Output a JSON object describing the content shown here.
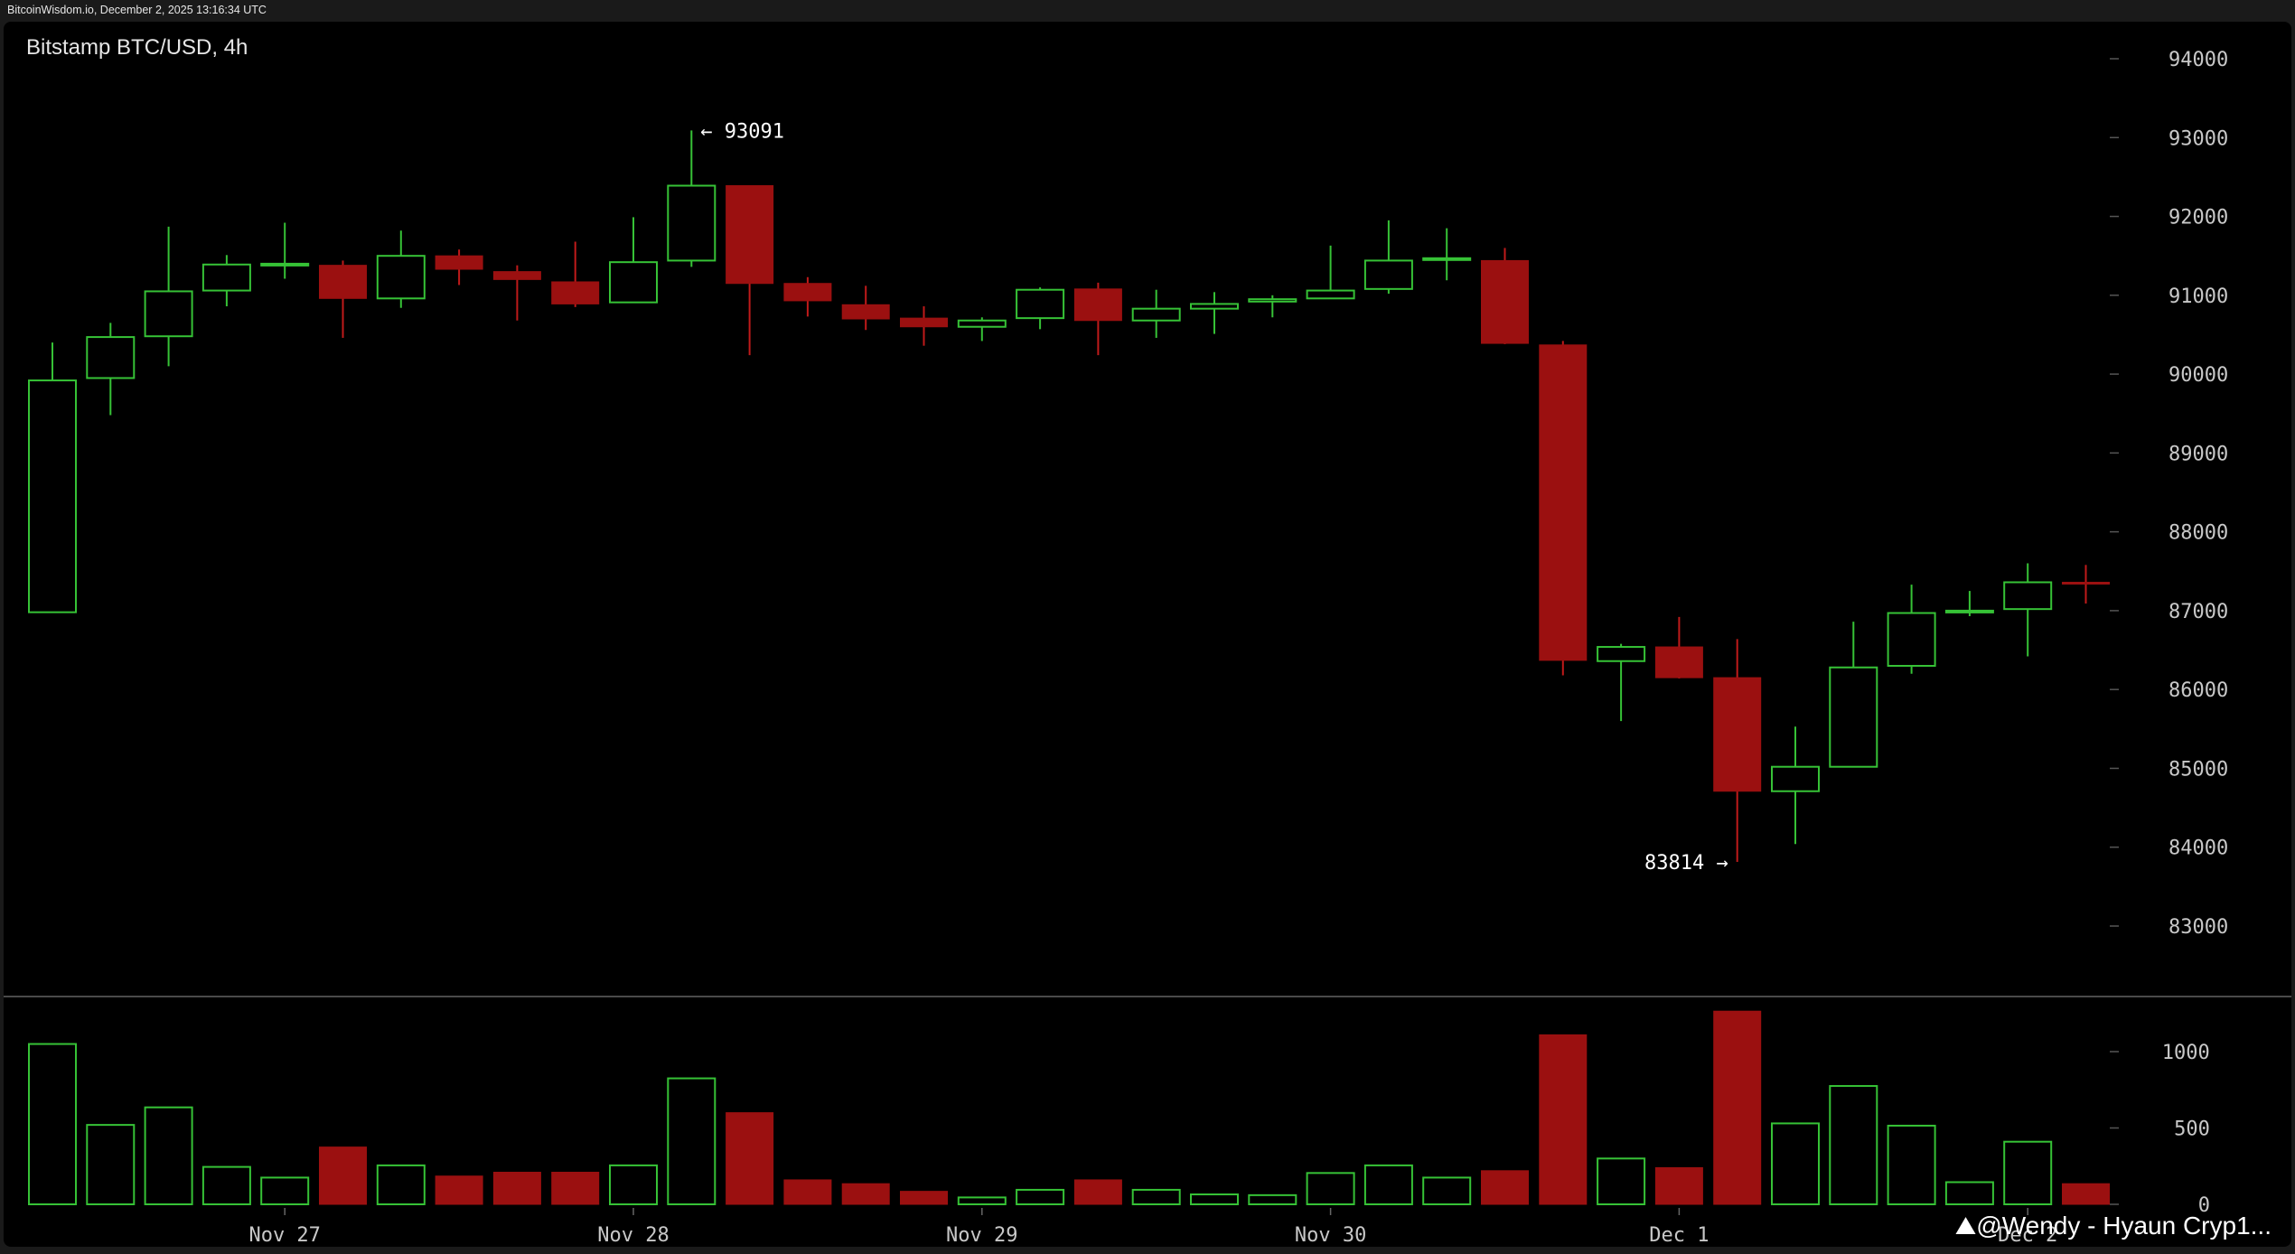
{
  "header": {
    "text": "BitcoinWisdom.io, December 2, 2025 13:16:34 UTC"
  },
  "watermark": {
    "text": "@Wendy - Hyaun Cryp1..."
  },
  "chart_data": {
    "type": "candlestick",
    "title": "Bitstamp BTC/USD, 4h",
    "price_axis": {
      "ticks": [
        83000,
        84000,
        85000,
        86000,
        87000,
        88000,
        89000,
        90000,
        91000,
        92000,
        93000,
        94000
      ]
    },
    "volume_axis": {
      "ticks": [
        0,
        500,
        1000
      ]
    },
    "x_labels": [
      {
        "label": "Nov 27",
        "index": 4
      },
      {
        "label": "Nov 28",
        "index": 10
      },
      {
        "label": "Nov 29",
        "index": 16
      },
      {
        "label": "Nov 30",
        "index": 22
      },
      {
        "label": "Dec 1",
        "index": 28
      },
      {
        "label": "Dec 2",
        "index": 34
      }
    ],
    "annotations": [
      {
        "text": "← 93091",
        "index": 11,
        "value": 93091,
        "side": "right"
      },
      {
        "text": "83814 →",
        "index": 29,
        "value": 83814,
        "side": "left"
      }
    ],
    "colors": {
      "up": "#36c236",
      "down": "#9b1010",
      "down_stroke": "#c01a1a"
    },
    "candles": [
      {
        "o": 86980,
        "h": 90400,
        "l": 86980,
        "c": 89920,
        "v": 1050
      },
      {
        "o": 89950,
        "h": 90650,
        "l": 89480,
        "c": 90470,
        "v": 520
      },
      {
        "o": 90480,
        "h": 91870,
        "l": 90100,
        "c": 91050,
        "v": 635
      },
      {
        "o": 91060,
        "h": 91510,
        "l": 90860,
        "c": 91390,
        "v": 245
      },
      {
        "o": 91400,
        "h": 91920,
        "l": 91210,
        "c": 91400,
        "v": 175
      },
      {
        "o": 91380,
        "h": 91440,
        "l": 90460,
        "c": 90960,
        "v": 375
      },
      {
        "o": 90960,
        "h": 91820,
        "l": 90840,
        "c": 91500,
        "v": 255
      },
      {
        "o": 91500,
        "h": 91580,
        "l": 91130,
        "c": 91330,
        "v": 185
      },
      {
        "o": 91300,
        "h": 91380,
        "l": 90680,
        "c": 91200,
        "v": 210
      },
      {
        "o": 91170,
        "h": 91680,
        "l": 90850,
        "c": 90890,
        "v": 210
      },
      {
        "o": 90910,
        "h": 91990,
        "l": 90910,
        "c": 91420,
        "v": 255
      },
      {
        "o": 91440,
        "h": 93091,
        "l": 91360,
        "c": 92390,
        "v": 825
      },
      {
        "o": 92390,
        "h": 92390,
        "l": 90240,
        "c": 91150,
        "v": 600
      },
      {
        "o": 91150,
        "h": 91230,
        "l": 90730,
        "c": 90930,
        "v": 160
      },
      {
        "o": 90880,
        "h": 91120,
        "l": 90560,
        "c": 90700,
        "v": 135
      },
      {
        "o": 90710,
        "h": 90860,
        "l": 90360,
        "c": 90600,
        "v": 85
      },
      {
        "o": 90600,
        "h": 90720,
        "l": 90420,
        "c": 90680,
        "v": 45
      },
      {
        "o": 90710,
        "h": 91100,
        "l": 90570,
        "c": 91070,
        "v": 95
      },
      {
        "o": 91080,
        "h": 91160,
        "l": 90240,
        "c": 90680,
        "v": 160
      },
      {
        "o": 90680,
        "h": 91070,
        "l": 90460,
        "c": 90830,
        "v": 95
      },
      {
        "o": 90830,
        "h": 91040,
        "l": 90510,
        "c": 90890,
        "v": 65
      },
      {
        "o": 90920,
        "h": 91000,
        "l": 90720,
        "c": 90950,
        "v": 60
      },
      {
        "o": 90960,
        "h": 91630,
        "l": 90960,
        "c": 91060,
        "v": 205
      },
      {
        "o": 91080,
        "h": 91950,
        "l": 91020,
        "c": 91440,
        "v": 255
      },
      {
        "o": 91460,
        "h": 91850,
        "l": 91190,
        "c": 91470,
        "v": 175
      },
      {
        "o": 91440,
        "h": 91600,
        "l": 90380,
        "c": 90390,
        "v": 220
      },
      {
        "o": 90370,
        "h": 90420,
        "l": 86180,
        "c": 86370,
        "v": 1110
      },
      {
        "o": 86360,
        "h": 86580,
        "l": 85600,
        "c": 86540,
        "v": 300
      },
      {
        "o": 86540,
        "h": 86920,
        "l": 86140,
        "c": 86150,
        "v": 240
      },
      {
        "o": 86150,
        "h": 86640,
        "l": 83814,
        "c": 84710,
        "v": 1265
      },
      {
        "o": 84710,
        "h": 85530,
        "l": 84040,
        "c": 85020,
        "v": 530
      },
      {
        "o": 85020,
        "h": 86860,
        "l": 85020,
        "c": 86280,
        "v": 775
      },
      {
        "o": 86300,
        "h": 87330,
        "l": 86200,
        "c": 86970,
        "v": 515
      },
      {
        "o": 86980,
        "h": 87250,
        "l": 86930,
        "c": 87000,
        "v": 145
      },
      {
        "o": 87020,
        "h": 87600,
        "l": 86420,
        "c": 87360,
        "v": 410
      },
      {
        "o": 87360,
        "h": 87580,
        "l": 87090,
        "c": 87340,
        "v": 135
      }
    ]
  }
}
